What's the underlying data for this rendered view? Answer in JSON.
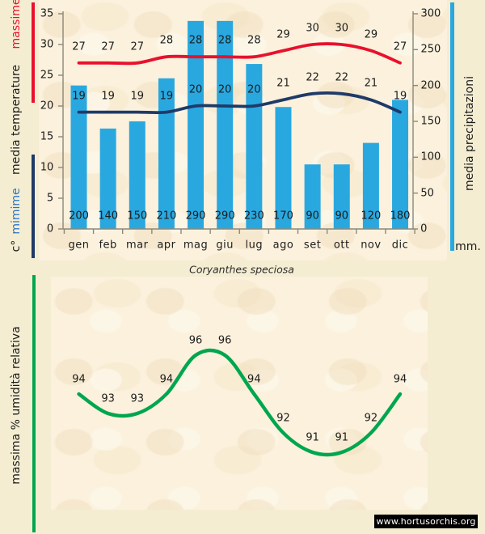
{
  "page": {
    "title": "Coryanthes speciosa",
    "site_badge": "www.hortusorchis.org"
  },
  "labels": {
    "massime": "massime",
    "media_temperature": "media  temperature",
    "mimime": "mimime",
    "celsius": "c°",
    "media_precipitazioni": "media  precipitazioni",
    "mm": "mm.",
    "umidita": "massima %  umidità relativa"
  },
  "chart_data": [
    {
      "type": "bar+line",
      "title": "Coryanthes speciosa",
      "categories": [
        "gen",
        "feb",
        "mar",
        "apr",
        "mag",
        "giu",
        "lug",
        "ago",
        "set",
        "ott",
        "nov",
        "dic"
      ],
      "series": [
        {
          "name": "massime",
          "role": "max_temp",
          "type": "line",
          "axis": "left",
          "color": "#e8112d",
          "values": [
            27,
            27,
            27,
            28,
            28,
            28,
            28,
            29,
            30,
            30,
            29,
            27
          ]
        },
        {
          "name": "mimime",
          "role": "min_temp",
          "type": "line",
          "axis": "left",
          "color": "#1f3a68",
          "values": [
            19,
            19,
            19,
            19,
            20,
            20,
            20,
            21,
            22,
            22,
            21,
            19
          ]
        },
        {
          "name": "media precipitazioni",
          "role": "precip",
          "type": "bar",
          "axis": "right",
          "color": "#29a8e0",
          "values": [
            200,
            140,
            150,
            210,
            290,
            290,
            230,
            170,
            90,
            90,
            120,
            180
          ]
        }
      ],
      "left_axis": {
        "label": "c°  mimime  media temperature  massime",
        "range": [
          0,
          35
        ],
        "ticks": [
          0,
          5,
          10,
          15,
          20,
          25,
          30,
          35
        ],
        "unit": "°C"
      },
      "right_axis": {
        "label": "media precipitazioni",
        "range": [
          0,
          300
        ],
        "ticks": [
          0,
          50,
          100,
          150,
          200,
          250,
          300
        ],
        "unit": "mm."
      },
      "grid": false,
      "legend_position": "rotated-side-labels"
    },
    {
      "type": "line",
      "categories": [
        "gen",
        "feb",
        "mar",
        "apr",
        "mag",
        "giu",
        "lug",
        "ago",
        "set",
        "ott",
        "nov",
        "dic"
      ],
      "series": [
        {
          "name": "massima % umidità relativa",
          "role": "humidity",
          "color": "#00a64f",
          "values": [
            94,
            93,
            93,
            94,
            96,
            96,
            94,
            92,
            91,
            91,
            92,
            94
          ]
        }
      ],
      "ylabel": "massima %  umidità relativa",
      "grid": false,
      "axes_visible": false
    }
  ]
}
